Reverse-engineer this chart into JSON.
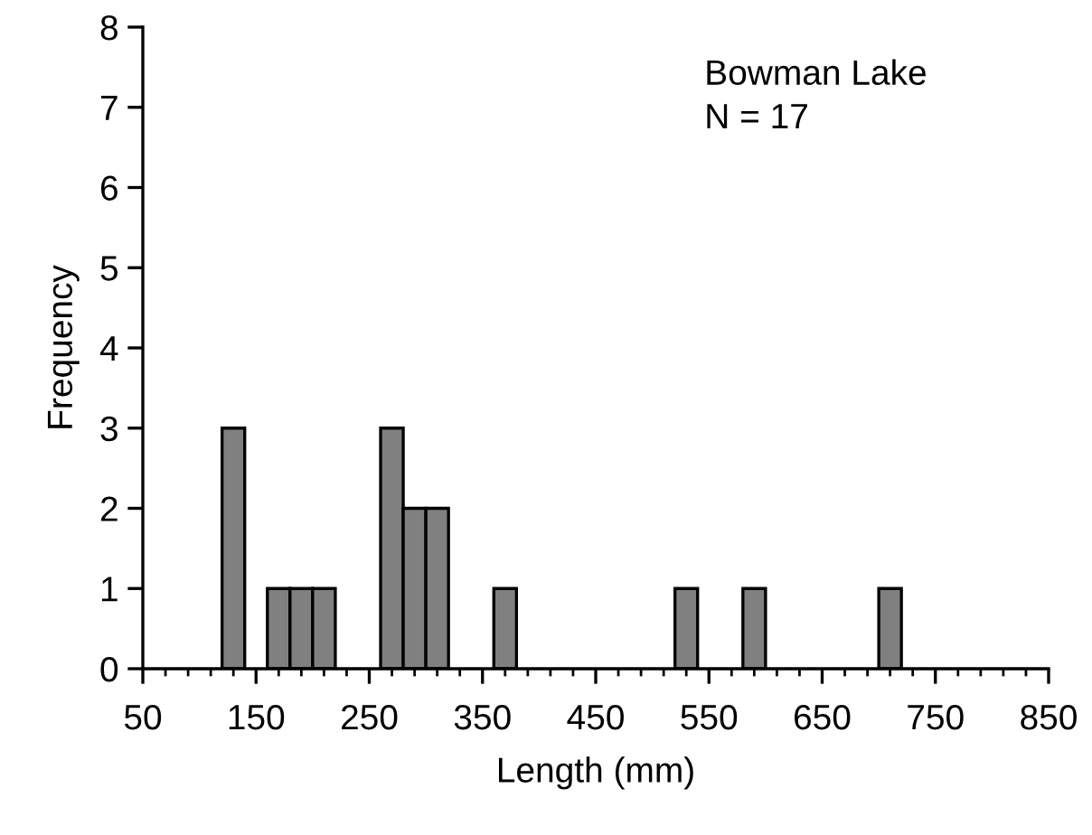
{
  "chart_data": {
    "type": "histogram",
    "xlabel": "Length (mm)",
    "ylabel": "Frequency",
    "annotations": [
      "Bowman Lake",
      "N = 17"
    ],
    "bins": [
      120,
      140,
      160,
      180,
      200,
      220,
      240,
      260,
      280,
      300,
      320,
      340,
      360,
      380,
      400,
      420,
      440,
      460,
      480,
      500,
      520,
      540,
      560,
      580,
      600,
      620,
      640,
      660,
      680,
      700,
      720
    ],
    "values": [
      3,
      0,
      1,
      1,
      1,
      0,
      0,
      3,
      2,
      2,
      0,
      0,
      1,
      0,
      0,
      0,
      0,
      0,
      0,
      0,
      1,
      0,
      0,
      1,
      0,
      0,
      0,
      0,
      0,
      1
    ],
    "color": "#808080",
    "xlim": [
      50,
      850
    ],
    "xticks": [
      50,
      {
        "value": 70,
        "label": null
      },
      {
        "value": 90,
        "label": null
      },
      {
        "value": 110,
        "label": null
      },
      {
        "value": 130,
        "label": null
      },
      150,
      {
        "value": 170,
        "label": null
      },
      {
        "value": 190,
        "label": null
      },
      {
        "value": 210,
        "label": null
      },
      {
        "value": 230,
        "label": null
      },
      250,
      {
        "value": 270,
        "label": null
      },
      {
        "value": 290,
        "label": null
      },
      {
        "value": 310,
        "label": null
      },
      {
        "value": 330,
        "label": null
      },
      350,
      {
        "value": 370,
        "label": null
      },
      {
        "value": 390,
        "label": null
      },
      {
        "value": 410,
        "label": null
      },
      {
        "value": 430,
        "label": null
      },
      450,
      {
        "value": 470,
        "label": null
      },
      {
        "value": 490,
        "label": null
      },
      {
        "value": 510,
        "label": null
      },
      {
        "value": 530,
        "label": null
      },
      550,
      {
        "value": 570,
        "label": null
      },
      {
        "value": 590,
        "label": null
      },
      {
        "value": 610,
        "label": null
      },
      {
        "value": 630,
        "label": null
      },
      650,
      {
        "value": 670,
        "label": null
      },
      {
        "value": 690,
        "label": null
      },
      {
        "value": 710,
        "label": null
      },
      {
        "value": 730,
        "label": null
      },
      750,
      {
        "value": 770,
        "label": null
      },
      {
        "value": 790,
        "label": null
      },
      {
        "value": 810,
        "label": null
      },
      {
        "value": 830,
        "label": null
      },
      850
    ],
    "ylim": [
      0,
      8
    ],
    "yticks": [
      0,
      1,
      2,
      3,
      4,
      5,
      6,
      7,
      8
    ],
    "grid": false,
    "legend": false
  }
}
